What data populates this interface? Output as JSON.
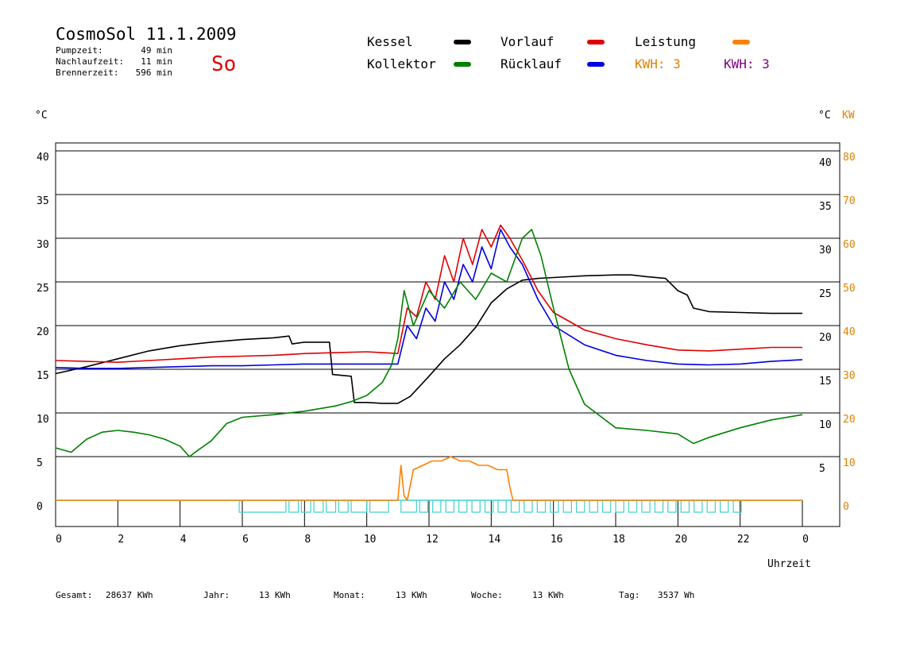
{
  "header": {
    "title": "CosmoSol 11.1.2009",
    "day": "So",
    "stats": [
      {
        "label": "Pumpzeit:",
        "value": "49 min"
      },
      {
        "label": "Nachlaufzeit:",
        "value": "11 min"
      },
      {
        "label": "Brennerzeit:",
        "value": "596 min"
      }
    ]
  },
  "legend": {
    "items": [
      {
        "label": "Kessel",
        "color": "#000000"
      },
      {
        "label": "Vorlauf",
        "color": "#e00000"
      },
      {
        "label": "Leistung",
        "color": "#ff8000"
      },
      {
        "label": "Kollektor",
        "color": "#008000"
      },
      {
        "label": "Rücklauf",
        "color": "#0000e0"
      }
    ],
    "kwh_orange": "KWH: 3",
    "kwh_purple": "KWH: 3",
    "kwh_orange_color": "#e08000",
    "kwh_purple_color": "#800080"
  },
  "axes": {
    "left_unit": "°C",
    "right_unit": "°C",
    "right_unit2": "KW",
    "xlabel": "Uhrzeit"
  },
  "footer": [
    {
      "label": "Gesamt:",
      "value": "28637 KWh"
    },
    {
      "label": "Jahr:",
      "value": "13 KWh"
    },
    {
      "label": "Monat:",
      "value": "13 KWh"
    },
    {
      "label": "Woche:",
      "value": "13 KWh"
    },
    {
      "label": "Tag:",
      "value": "3537 Wh"
    }
  ],
  "chart_data": {
    "type": "line",
    "title": "CosmoSol 11.1.2009",
    "xlabel": "Uhrzeit",
    "ylabel": "°C",
    "xlim": [
      0,
      24
    ],
    "ylim": [
      0,
      40
    ],
    "y2lim": [
      0,
      80
    ],
    "x_ticks": [
      "0",
      "2",
      "4",
      "6",
      "8",
      "10",
      "12",
      "14",
      "16",
      "18",
      "20",
      "22",
      "0"
    ],
    "y_ticks_left": [
      "0",
      "5",
      "10",
      "15",
      "20",
      "25",
      "30",
      "35",
      "40"
    ],
    "y_ticks_right_temp": [
      "5",
      "10",
      "15",
      "20",
      "25",
      "30",
      "35",
      "40"
    ],
    "y_ticks_right_kw": [
      "0",
      "10",
      "20",
      "30",
      "40",
      "50",
      "60",
      "70",
      "80"
    ],
    "grid": true,
    "series": [
      {
        "name": "Kessel",
        "color": "#000000",
        "x": [
          0,
          1,
          2,
          3,
          4,
          5,
          6,
          7,
          7.5,
          7.6,
          8,
          8.8,
          8.9,
          9.5,
          9.6,
          10,
          10.5,
          11,
          11.4,
          12,
          12.5,
          13,
          13.5,
          14,
          14.5,
          15,
          15.5,
          16,
          17,
          18,
          18.5,
          19,
          19.6,
          20,
          20.3,
          20.5,
          21,
          22,
          23,
          24
        ],
        "y": [
          14.5,
          15.3,
          16.2,
          17.1,
          17.7,
          18.1,
          18.4,
          18.6,
          18.8,
          17.9,
          18.1,
          18.1,
          14.4,
          14.2,
          11.2,
          11.2,
          11.1,
          11.1,
          11.9,
          14.2,
          16.2,
          17.8,
          19.8,
          22.6,
          24.2,
          25.2,
          25.4,
          25.5,
          25.7,
          25.8,
          25.8,
          25.6,
          25.4,
          24.0,
          23.5,
          22.0,
          21.6,
          21.5,
          21.4,
          21.4
        ]
      },
      {
        "name": "Vorlauf",
        "color": "#e00000",
        "x": [
          0,
          1,
          2,
          3,
          4,
          5,
          6,
          7,
          8,
          9,
          10,
          10.5,
          11,
          11.3,
          11.6,
          11.9,
          12.2,
          12.5,
          12.8,
          13.1,
          13.4,
          13.7,
          14,
          14.3,
          14.6,
          15,
          15.5,
          16,
          17,
          18,
          19,
          20,
          21,
          22,
          23,
          24
        ],
        "y": [
          16.0,
          15.9,
          15.8,
          16.0,
          16.2,
          16.4,
          16.5,
          16.6,
          16.8,
          16.9,
          17.0,
          16.9,
          16.8,
          22.0,
          21.0,
          25.0,
          23.0,
          28.0,
          25.0,
          30.0,
          27.0,
          31.0,
          29.0,
          31.5,
          30.0,
          27.5,
          24.0,
          21.5,
          19.5,
          18.5,
          17.8,
          17.2,
          17.1,
          17.3,
          17.5,
          17.5
        ]
      },
      {
        "name": "Rücklauf",
        "color": "#0000e0",
        "x": [
          0,
          1,
          2,
          3,
          4,
          5,
          6,
          7,
          8,
          9,
          10,
          11,
          11.3,
          11.6,
          11.9,
          12.2,
          12.5,
          12.8,
          13.1,
          13.4,
          13.7,
          14,
          14.3,
          14.6,
          15,
          15.5,
          16,
          17,
          18,
          19,
          20,
          21,
          22,
          23,
          24
        ],
        "y": [
          15.2,
          15.1,
          15.1,
          15.2,
          15.3,
          15.4,
          15.4,
          15.5,
          15.6,
          15.6,
          15.6,
          15.6,
          20.0,
          18.5,
          22.0,
          20.5,
          25.0,
          23.0,
          27.0,
          25.0,
          29.0,
          26.5,
          31.0,
          29.0,
          27.0,
          23.0,
          20.0,
          17.8,
          16.6,
          16.0,
          15.6,
          15.5,
          15.6,
          15.9,
          16.1
        ]
      },
      {
        "name": "Kollektor",
        "color": "#008000",
        "x": [
          0,
          0.5,
          1,
          1.5,
          2,
          2.5,
          3,
          3.5,
          4,
          4.3,
          4.6,
          5,
          5.5,
          6,
          7,
          8,
          9,
          9.5,
          10,
          10.5,
          10.8,
          11,
          11.2,
          11.5,
          12,
          12.5,
          13,
          13.5,
          14,
          14.5,
          15,
          15.3,
          15.6,
          16,
          16.5,
          17,
          18,
          19,
          20,
          20.5,
          21,
          22,
          23,
          24
        ],
        "y": [
          6.0,
          5.5,
          7.0,
          7.8,
          8.0,
          7.8,
          7.5,
          7.0,
          6.2,
          5.0,
          5.8,
          6.8,
          8.8,
          9.5,
          9.8,
          10.2,
          10.8,
          11.3,
          12.0,
          13.5,
          15.5,
          18.5,
          24.0,
          20.0,
          24.0,
          22.0,
          25.0,
          23.0,
          26.0,
          25.0,
          30.0,
          31.0,
          28.0,
          22.0,
          15.0,
          11.0,
          8.3,
          8.0,
          7.6,
          6.5,
          7.2,
          8.3,
          9.2,
          9.8
        ]
      },
      {
        "name": "Leistung",
        "color": "#ff8000",
        "x": [
          0,
          11.0,
          11.1,
          11.2,
          11.3,
          11.5,
          11.8,
          12.1,
          12.4,
          12.7,
          13.0,
          13.3,
          13.6,
          13.9,
          14.2,
          14.5,
          14.6,
          14.7,
          24
        ],
        "y": [
          0,
          0,
          8,
          1,
          0,
          7,
          8,
          9,
          9,
          10,
          9,
          9,
          8,
          8,
          7,
          7,
          3,
          0,
          0
        ]
      }
    ]
  }
}
